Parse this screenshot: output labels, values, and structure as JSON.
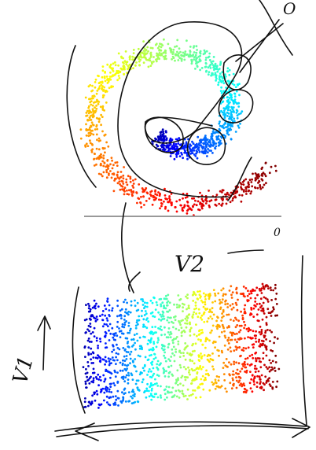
{
  "annotations": {
    "top_label": "O",
    "zero_label": "0",
    "v2_label": "V2",
    "v1_label": "V1"
  }
}
